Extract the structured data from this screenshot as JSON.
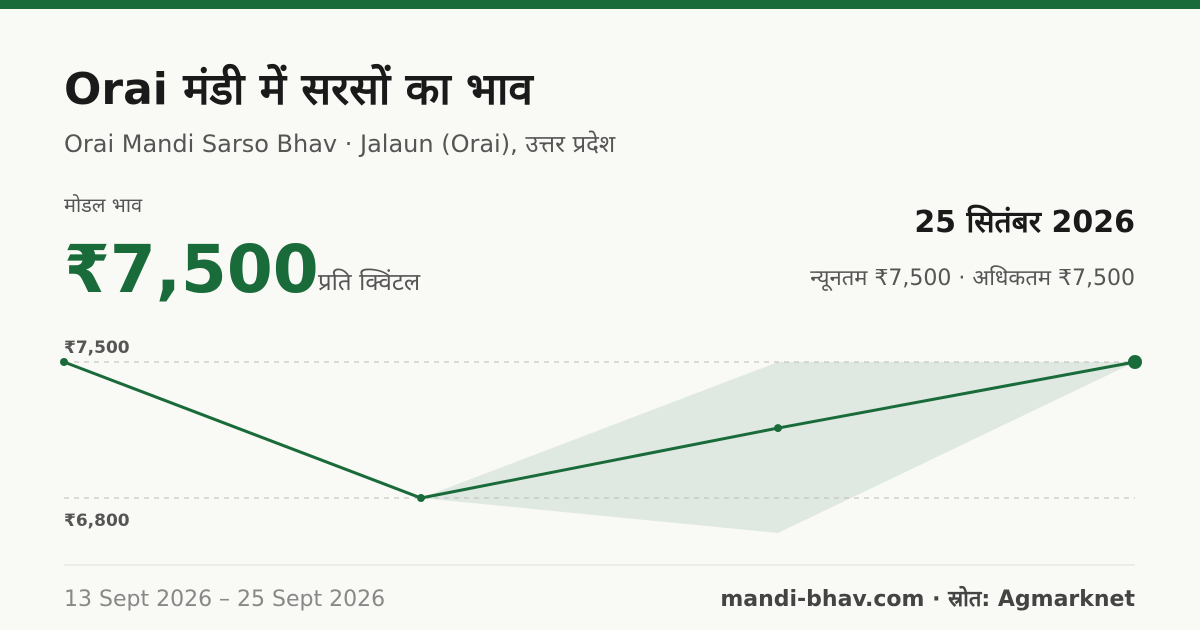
{
  "header": {
    "title": "Orai मंडी में सरसों का भाव",
    "subtitle": "Orai Mandi Sarso Bhav · Jalaun (Orai), उत्तर प्रदेश"
  },
  "price": {
    "label": "मोडल भाव",
    "value": "₹7,500",
    "unit": "प्रति क्विंटल",
    "date": "25 सितंबर 2026",
    "range": "न्यूनतम ₹7,500 · अधिकतम ₹7,500"
  },
  "chart_data": {
    "type": "line",
    "categories": [
      null,
      null,
      null,
      null
    ],
    "values": [
      7500,
      6800,
      7160,
      7500
    ],
    "color": "#1a6b3a",
    "band_max": [
      null,
      6800,
      7500,
      7500
    ],
    "band_min": [
      null,
      6800,
      6620,
      7500
    ],
    "band_color": "#dfe9e2",
    "ylim": [
      6620,
      7500
    ],
    "yticks": [
      {
        "value": 7500,
        "label": "₹7,500"
      },
      {
        "value": 6800,
        "label": "₹6,800"
      }
    ],
    "grid": true
  },
  "footer": {
    "period": "13 Sept 2026 – 25 Sept 2026",
    "source": "mandi-bhav.com · स्रोत: Agmarknet"
  }
}
